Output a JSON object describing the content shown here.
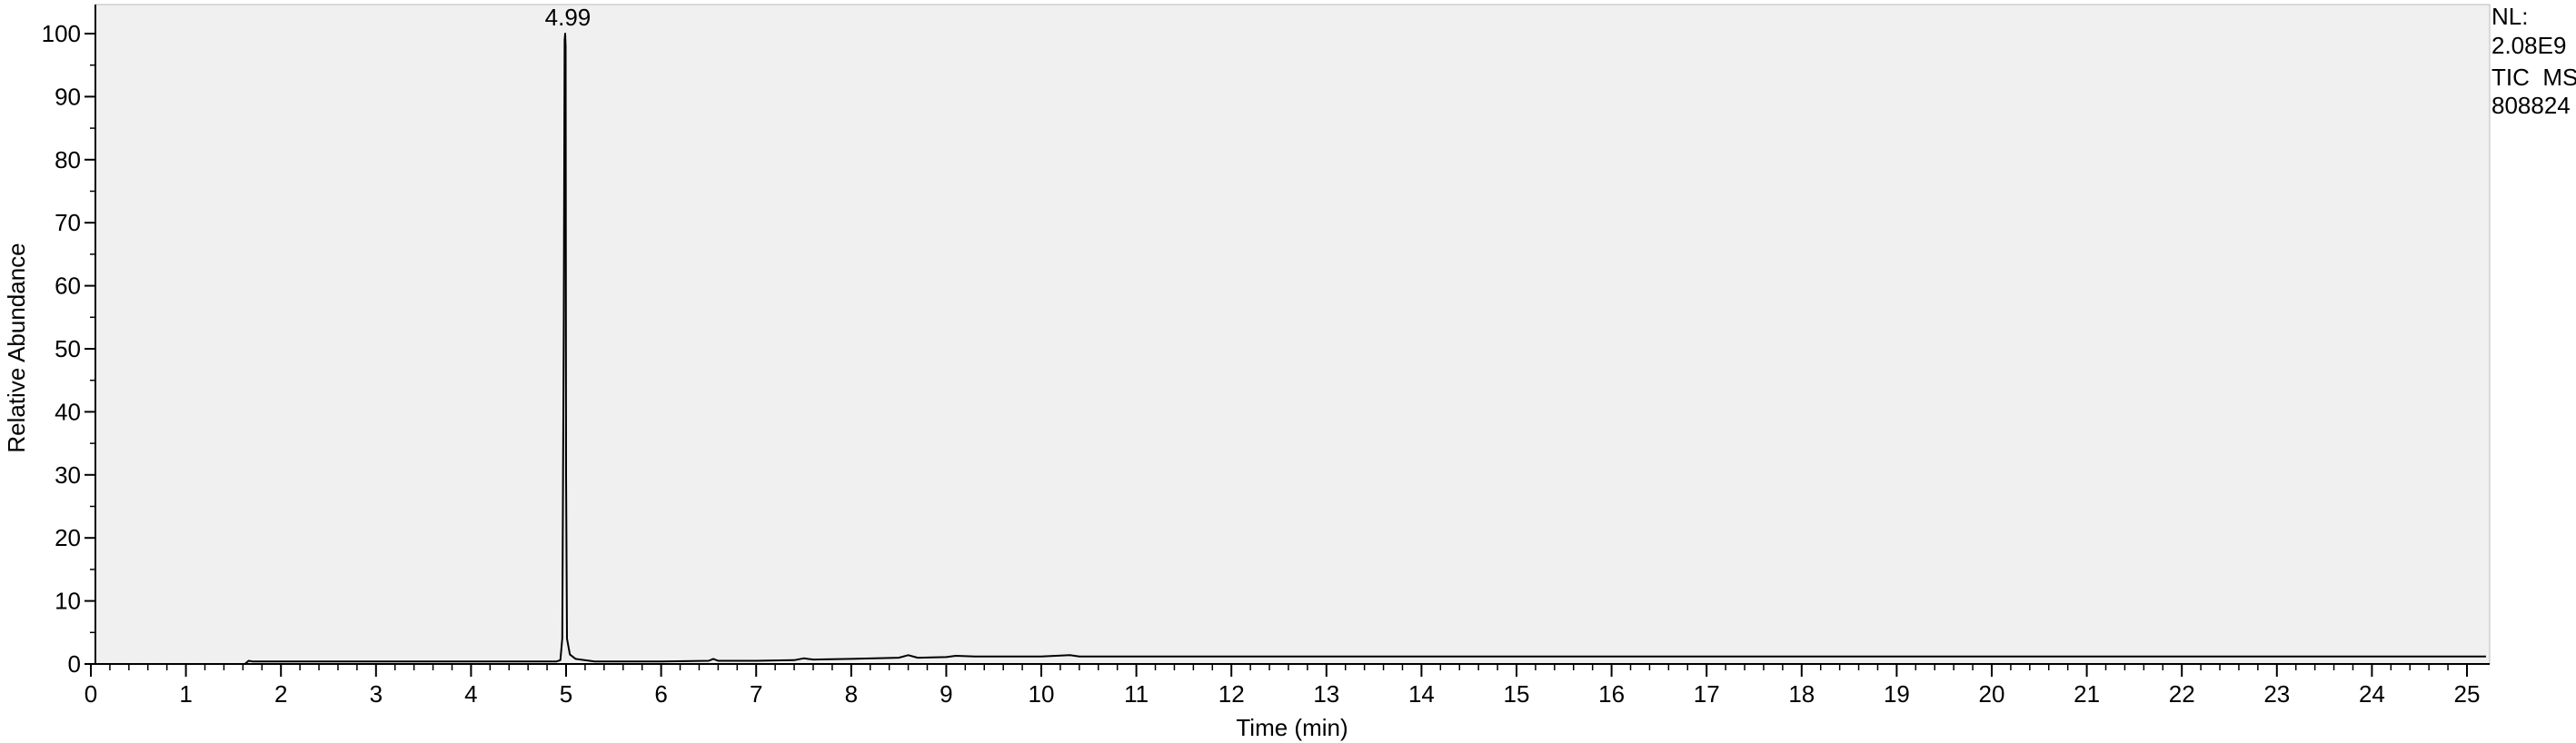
{
  "chart_data": {
    "type": "line",
    "title": "",
    "xlabel": "Time (min)",
    "ylabel": "Relative Abundance",
    "xlim": [
      0,
      25.2
    ],
    "ylim": [
      0,
      102
    ],
    "x_ticks": [
      0,
      1,
      2,
      3,
      4,
      5,
      6,
      7,
      8,
      9,
      10,
      11,
      12,
      13,
      14,
      15,
      16,
      17,
      18,
      19,
      20,
      21,
      22,
      23,
      24,
      25
    ],
    "y_ticks": [
      0,
      10,
      20,
      30,
      40,
      50,
      60,
      70,
      80,
      90,
      100
    ],
    "grid": false,
    "legend": "none",
    "colors": {
      "plot_background": "#f0f0f0",
      "trace": "#000000",
      "axis": "#000000"
    },
    "series": [
      {
        "points": [
          [
            0.0,
            0
          ],
          [
            1.5,
            0
          ],
          [
            1.62,
            0
          ],
          [
            1.66,
            0.5
          ],
          [
            1.7,
            0.4
          ],
          [
            2.5,
            0.4
          ],
          [
            3.5,
            0.4
          ],
          [
            4.5,
            0.4
          ],
          [
            4.9,
            0.4
          ],
          [
            4.94,
            0.6
          ],
          [
            4.96,
            4
          ],
          [
            4.975,
            52
          ],
          [
            4.985,
            99
          ],
          [
            4.99,
            100
          ],
          [
            4.995,
            98
          ],
          [
            5.0,
            30
          ],
          [
            5.01,
            4
          ],
          [
            5.04,
            1.5
          ],
          [
            5.1,
            0.8
          ],
          [
            5.3,
            0.4
          ],
          [
            6.0,
            0.4
          ],
          [
            6.5,
            0.5
          ],
          [
            6.55,
            0.8
          ],
          [
            6.6,
            0.5
          ],
          [
            7.0,
            0.5
          ],
          [
            7.4,
            0.6
          ],
          [
            7.5,
            0.9
          ],
          [
            7.6,
            0.7
          ],
          [
            8.0,
            0.8
          ],
          [
            8.5,
            1.0
          ],
          [
            8.6,
            1.4
          ],
          [
            8.7,
            1.0
          ],
          [
            9.0,
            1.1
          ],
          [
            9.1,
            1.3
          ],
          [
            9.3,
            1.2
          ],
          [
            10.0,
            1.2
          ],
          [
            10.3,
            1.4
          ],
          [
            10.4,
            1.2
          ],
          [
            12.0,
            1.2
          ],
          [
            14.0,
            1.2
          ],
          [
            16.0,
            1.2
          ],
          [
            18.0,
            1.2
          ],
          [
            20.0,
            1.2
          ],
          [
            22.0,
            1.2
          ],
          [
            24.0,
            1.2
          ],
          [
            25.2,
            1.2
          ]
        ]
      }
    ],
    "annotations": [
      {
        "text": "4.99",
        "x": 4.99,
        "y": 100
      }
    ],
    "info_lines": [
      "NL:",
      "2.08E9",
      "TIC  MS",
      "808824"
    ]
  }
}
